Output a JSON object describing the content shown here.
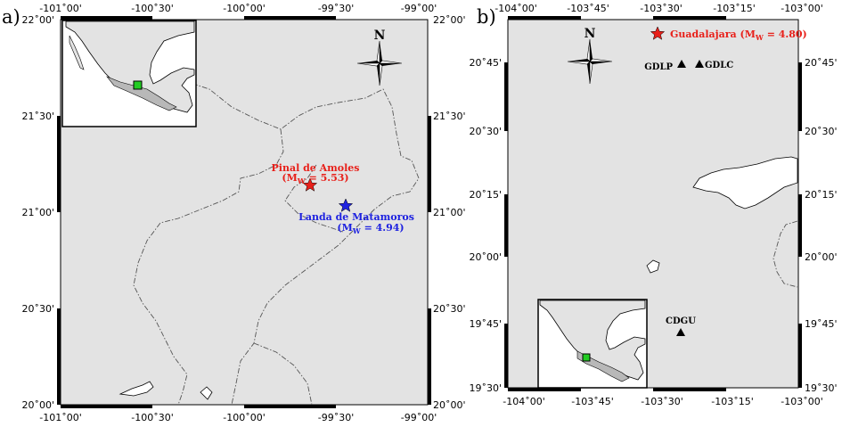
{
  "panels": [
    {
      "id": "a",
      "label": "a)",
      "x_ticks": [
        "-101˚00'",
        "-100˚30'",
        "-100˚00'",
        "-99˚30'",
        "-99˚00'"
      ],
      "y_ticks": [
        "22˚00'",
        "21˚30'",
        "21˚00'",
        "20˚30'",
        "20˚00'"
      ],
      "north_label": "N",
      "events": [
        {
          "name": "Pinal de Amoles",
          "magnitude_prefix": "(M",
          "magnitude_sub": "W",
          "magnitude_value": " = 5.53)",
          "color": "#e8201a"
        },
        {
          "name": "Landa de Matamoros",
          "magnitude_prefix": "(M",
          "magnitude_sub": "W",
          "magnitude_value": " = 4.94)",
          "color": "#1e22e0"
        }
      ]
    },
    {
      "id": "b",
      "label": "b)",
      "x_ticks": [
        "-104˚00'",
        "-103˚45'",
        "-103˚30'",
        "-103˚15'",
        "-103˚00'"
      ],
      "y_ticks": [
        "20˚45'",
        "20˚30'",
        "20˚15'",
        "20˚00'",
        "19˚45'",
        "19˚30'"
      ],
      "north_label": "N",
      "events": [
        {
          "name": "Guadalajara",
          "magnitude_prefix": " (M",
          "magnitude_sub": "W",
          "magnitude_value": " = 4.80)",
          "color": "#e8201a"
        }
      ],
      "stations": [
        "GDLP",
        "GDLC",
        "CDGU"
      ]
    }
  ],
  "colors": {
    "land": "#e3e3e3",
    "water": "#ffffff",
    "inset_highlight": "#22cc22",
    "border_line": "#555555"
  }
}
